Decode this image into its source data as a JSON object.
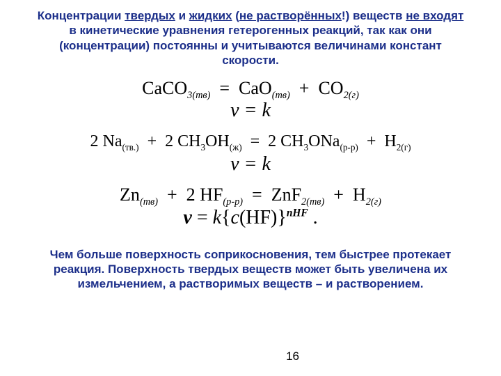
{
  "intro": {
    "p1a": "Концентрации ",
    "u1": "твердых",
    "p1b": " и ",
    "u2": "жидких",
    "p1c": " (",
    "u3": "не растворённых",
    "p1d": "!) веществ ",
    "u4": "не входят",
    "p1e": " в кинетические уравнения гетерогенных реакций, так как они (концентрации) постоянны и учитываются величинами констант скорости."
  },
  "eq1": {
    "lhs_sp": "CaCO",
    "lhs_sub": "3(тв)",
    "rhs1_sp": "CaO",
    "rhs1_sub": "(тв)",
    "rhs2_sp": "CO",
    "rhs2_sub": "2(г)",
    "rate": "v = k"
  },
  "eq2": {
    "c1": "2 Na",
    "c1_sub": "(тв.)",
    "c2": "2 CH",
    "c2_sub1": "3",
    "c2b": "OH",
    "c2_sub2": "(ж)",
    "c3": "2 CH",
    "c3_sub1": "3",
    "c3b": "ONa",
    "c3_sub2": "(р-р)",
    "c4": "H",
    "c4_sub": "2(г)",
    "rate": "v = k"
  },
  "eq3": {
    "c1": "Zn",
    "c1_sub": "(тв)",
    "c2": "2 HF",
    "c2_sub": "(р-р)",
    "c3": "ZnF",
    "c3_sub": "2(тв)",
    "c4": "H",
    "c4_sub": "2(г)",
    "rate_v": "v",
    "rate_eq": " = ",
    "rate_k": "k",
    "rate_open": "{",
    "rate_c": "c",
    "rate_arg": "(HF)}",
    "rate_exp": "nHF",
    "rate_dot": " ."
  },
  "outro": "Чем больше поверхность соприкосновения, тем быстрее протекает реакция. Поверхность твердых веществ может быть увеличена их измельчением, а растворимых веществ – и растворением.",
  "pagenum": "16",
  "colors": {
    "heading": "#1c2f8a",
    "body": "#000000",
    "bg": "#ffffff"
  }
}
